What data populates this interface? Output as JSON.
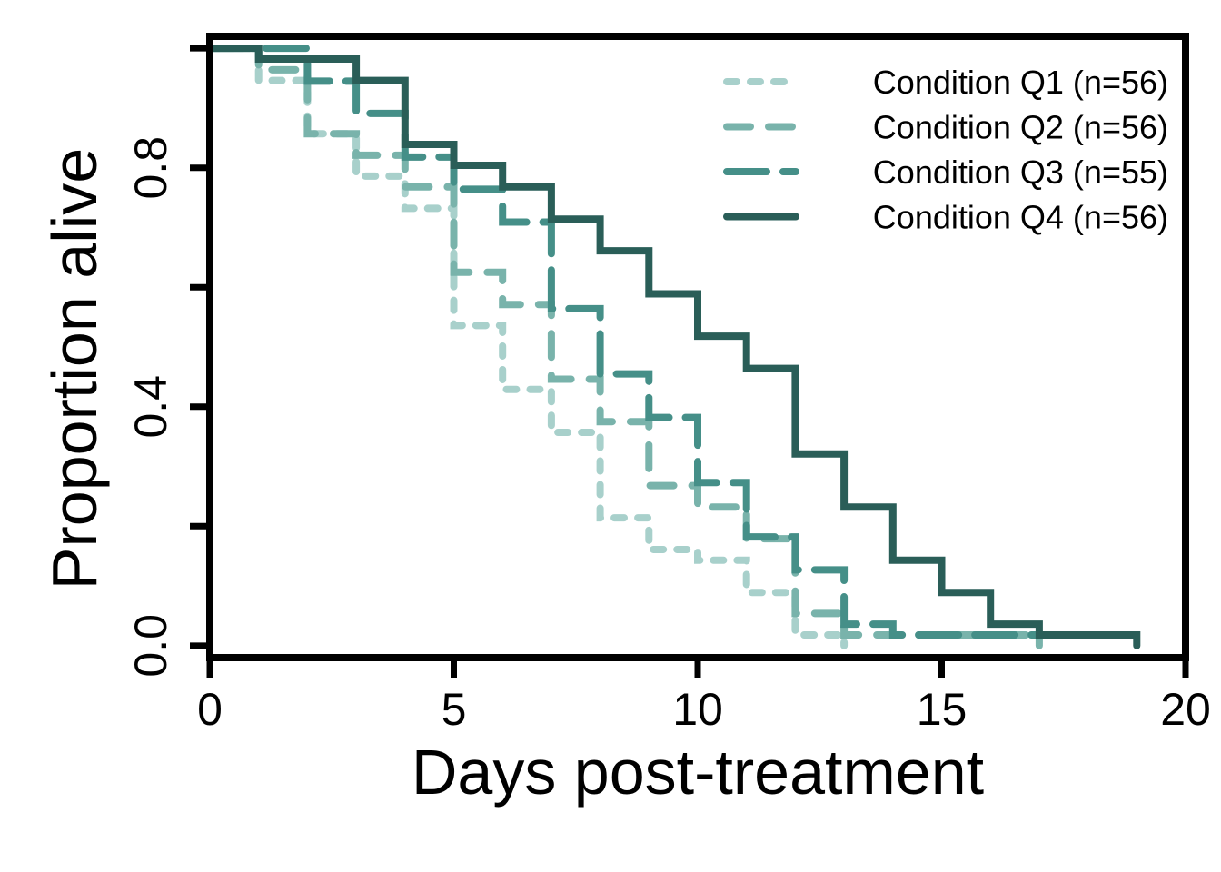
{
  "chart_data": {
    "type": "line",
    "subtype": "kaplan-meier step",
    "xlabel": "Days post-treatment",
    "ylabel": "Proportion alive",
    "xlim": [
      0,
      20
    ],
    "ylim": [
      -0.02,
      1.02
    ],
    "x_ticks": [
      0,
      5,
      10,
      15,
      20
    ],
    "x_tick_labels": [
      "0",
      "5",
      "10",
      "15",
      "20"
    ],
    "y_ticks": [
      0.0,
      0.2,
      0.4,
      0.6,
      0.8,
      1.0
    ],
    "y_tick_labels": [
      "0.0",
      "",
      "0.4",
      "",
      "0.8",
      ""
    ],
    "grid": false,
    "legend_position": "top-right",
    "series": [
      {
        "name": "Condition Q1 (n=56)",
        "color": "#a8d0cb",
        "dash": "dotted",
        "steps": [
          [
            0,
            1.0
          ],
          [
            1,
            0.946
          ],
          [
            2,
            0.857
          ],
          [
            3,
            0.786
          ],
          [
            4,
            0.732
          ],
          [
            5,
            0.536
          ],
          [
            6,
            0.429
          ],
          [
            7,
            0.357
          ],
          [
            8,
            0.214
          ],
          [
            9,
            0.161
          ],
          [
            10,
            0.143
          ],
          [
            11,
            0.089
          ],
          [
            12,
            0.018
          ],
          [
            13,
            0.0
          ]
        ]
      },
      {
        "name": "Condition Q2 (n=56)",
        "color": "#79b3ab",
        "dash": "medium-dash",
        "steps": [
          [
            0,
            1.0
          ],
          [
            1,
            0.964
          ],
          [
            2,
            0.857
          ],
          [
            3,
            0.821
          ],
          [
            4,
            0.768
          ],
          [
            5,
            0.625
          ],
          [
            6,
            0.571
          ],
          [
            7,
            0.446
          ],
          [
            8,
            0.375
          ],
          [
            9,
            0.268
          ],
          [
            10,
            0.232
          ],
          [
            11,
            0.179
          ],
          [
            12,
            0.054
          ],
          [
            13,
            0.018
          ],
          [
            14,
            0.018
          ],
          [
            17,
            0.0
          ]
        ]
      },
      {
        "name": "Condition Q3 (n=55)",
        "color": "#458f88",
        "dash": "long-dash",
        "steps": [
          [
            0,
            1.0
          ],
          [
            2,
            0.945
          ],
          [
            3,
            0.891
          ],
          [
            4,
            0.818
          ],
          [
            5,
            0.764
          ],
          [
            6,
            0.709
          ],
          [
            7,
            0.564
          ],
          [
            8,
            0.455
          ],
          [
            9,
            0.382
          ],
          [
            10,
            0.273
          ],
          [
            11,
            0.182
          ],
          [
            12,
            0.127
          ],
          [
            13,
            0.036
          ],
          [
            14,
            0.018
          ],
          [
            16,
            0.018
          ],
          [
            17,
            0.018
          ]
        ]
      },
      {
        "name": "Condition Q4 (n=56)",
        "color": "#2a5e58",
        "dash": "solid",
        "steps": [
          [
            0,
            1.0
          ],
          [
            1,
            0.982
          ],
          [
            3,
            0.946
          ],
          [
            4,
            0.839
          ],
          [
            5,
            0.804
          ],
          [
            6,
            0.768
          ],
          [
            7,
            0.714
          ],
          [
            8,
            0.661
          ],
          [
            9,
            0.589
          ],
          [
            10,
            0.518
          ],
          [
            11,
            0.464
          ],
          [
            12,
            0.321
          ],
          [
            13,
            0.232
          ],
          [
            14,
            0.143
          ],
          [
            15,
            0.089
          ],
          [
            16,
            0.036
          ],
          [
            17,
            0.018
          ],
          [
            19,
            0.0
          ]
        ]
      }
    ]
  }
}
